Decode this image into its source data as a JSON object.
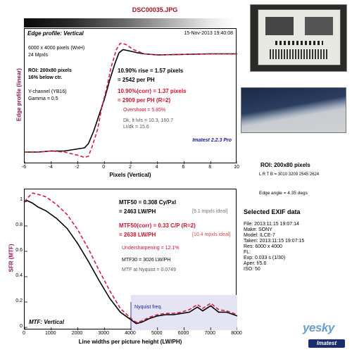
{
  "header": {
    "filename": "DSC00035.JPG",
    "date": "15-Nov-2013 19:40:08"
  },
  "edge_panel": {
    "title": "Edge profile: Vertical",
    "info_lines": [
      "6000 x 4000 pixels (WxH)",
      "24 Mpxls"
    ],
    "roi_line1": "ROI: 200x80 pixels",
    "roi_line2": "16% below ctr.",
    "channel_lines": [
      "Y-channel  (YB16)",
      "Gamma = 0.5"
    ],
    "rise_line": "10.90% rise = 1.57 pixels",
    "perph_line": "= 2542 per PH",
    "corr_line": "10.90%(corr) = 1.37 pixels",
    "corr_perph_line": "= 2909 per PH   (R=2)",
    "overshoot": "Overshoot = 5.85%",
    "dk_line": "Dk, lt lvls = 10.3, 160.7",
    "ltdk_line": "Lt/dk = 15.6",
    "version": "Imatest 2.2.3 Pro",
    "ylabel": "Edge profile (linear)",
    "xlabel": "Pixels (Vertical)"
  },
  "mtf_panel": {
    "title": "MTF: Vertical",
    "mtf50": "MTF50 = 0.308  Cy/Pxl",
    "mtf50_lw": "= 2463  LW/PH",
    "mtf50_note": "[9.1 mpxls ideal]",
    "mtf50c": "MTF50(corr) = 0.33  C/P   (R=2)",
    "mtf50c_lw": "= 2638  LW/PH",
    "mtf50c_note": "[10.4 mpxls ideal]",
    "undersharp": "Undersharpening = 12.1%",
    "mtf30": "MTF30 = 3026  LW/PH",
    "nyq_line": "MTF at Nyquist = 0.0749",
    "nyq_label": "Nyquist freq.",
    "ylabel": "SFR (MTF)",
    "xlabel": "Line widths per picture height (LW/PH)"
  },
  "right_info": {
    "roi": "ROI: 200x80 pixels",
    "lrtb": "L R T B = 3010 3209  2545 2624",
    "edge_angle": "Edge angle = 4.35 degs",
    "exif_title": "Selected EXIF data",
    "exif_lines": [
      "File:  2013:11:15 19:07:14",
      "Make:  SONY",
      "Model:  ILCE-7",
      "Taken:  2013:11:15 19:07:15",
      "Res:   6000 x 4000",
      "FL:",
      "Exp:    0.033 s  (1/30)",
      "Aper:  f/5.6",
      "ISO:   50"
    ]
  },
  "logo": {
    "text": "Imatest",
    "mark": "yesky"
  },
  "colors": {
    "measured": "#000000",
    "corrected": "#d01e3c",
    "accent_title": "#a0141e",
    "axis_label": "#8b1a5a"
  },
  "chart_data": [
    {
      "type": "line",
      "title": "Edge profile: Vertical",
      "xlabel": "Pixels (Vertical)",
      "ylabel": "Edge profile (linear)",
      "xlim": [
        -6,
        10
      ],
      "x_ticks": [
        -6,
        -4,
        -2,
        0,
        2,
        4,
        6,
        8,
        10
      ],
      "series": [
        {
          "x": [
            -6,
            -5,
            -4,
            -3,
            -2,
            -1.5,
            -1.2,
            -0.8,
            -0.4,
            0,
            0.4,
            0.8,
            1.1,
            1.4,
            1.8,
            2.5,
            3,
            4,
            6,
            8,
            10
          ],
          "values": [
            0.0,
            0.0,
            0.01,
            0.01,
            0.03,
            0.04,
            0.08,
            0.2,
            0.35,
            0.5,
            0.68,
            0.84,
            0.94,
            0.97,
            0.96,
            0.94,
            0.93,
            0.92,
            0.925,
            0.93,
            0.93
          ]
        },
        {
          "x": [
            -6,
            -5,
            -4,
            -3,
            -2,
            -1.5,
            -1.2,
            -0.9,
            -0.5,
            -0.2,
            0.2,
            0.5,
            0.9,
            1.2,
            1.6,
            2.2,
            3,
            4,
            6,
            8,
            10
          ],
          "values": [
            0.0,
            0.0,
            0.01,
            0.0,
            -0.03,
            -0.05,
            -0.04,
            0.06,
            0.22,
            0.42,
            0.62,
            0.8,
            0.97,
            1.03,
            1.02,
            0.97,
            0.93,
            0.92,
            0.925,
            0.93,
            0.93
          ]
        }
      ]
    },
    {
      "type": "line",
      "title": "MTF: Vertical",
      "xlabel": "Line widths per picture height (LW/PH)",
      "ylabel": "SFR (MTF)",
      "xlim": [
        0,
        8000
      ],
      "ylim": [
        0,
        1
      ],
      "x_ticks": [
        0,
        1000,
        2000,
        3000,
        4000,
        5000,
        6000,
        7000,
        8000
      ],
      "y_ticks": [
        0,
        0.2,
        0.4,
        0.6,
        0.8,
        1
      ],
      "nyquist": 4000,
      "series": [
        {
          "x": [
            0,
            100,
            300,
            500,
            800,
            1200,
            1600,
            2000,
            2400,
            2800,
            3200,
            3600,
            4000,
            4200,
            4400,
            4700,
            5000,
            5300,
            5600,
            5900,
            6200,
            6500,
            6700,
            7000,
            7300,
            7600,
            8000
          ],
          "values": [
            0.99,
            1.0,
            0.98,
            0.95,
            0.92,
            0.86,
            0.78,
            0.66,
            0.52,
            0.37,
            0.23,
            0.12,
            0.06,
            0.03,
            0.04,
            0.07,
            0.09,
            0.1,
            0.1,
            0.11,
            0.12,
            0.16,
            0.13,
            0.17,
            0.12,
            0.12,
            0.09
          ]
        },
        {
          "x": [
            0,
            100,
            300,
            500,
            800,
            1200,
            1600,
            2000,
            2400,
            2800,
            3200,
            3600,
            4000,
            4200,
            4400,
            4700,
            5000,
            5300,
            5600,
            5900,
            6200,
            6500,
            6700,
            7000,
            7300,
            7600,
            8000
          ],
          "values": [
            0.99,
            1.02,
            1.06,
            1.05,
            1.03,
            0.97,
            0.89,
            0.77,
            0.62,
            0.45,
            0.29,
            0.15,
            0.07,
            0.04,
            0.05,
            0.08,
            0.1,
            0.11,
            0.11,
            0.12,
            0.14,
            0.18,
            0.15,
            0.19,
            0.14,
            0.13,
            0.1
          ]
        }
      ]
    }
  ]
}
